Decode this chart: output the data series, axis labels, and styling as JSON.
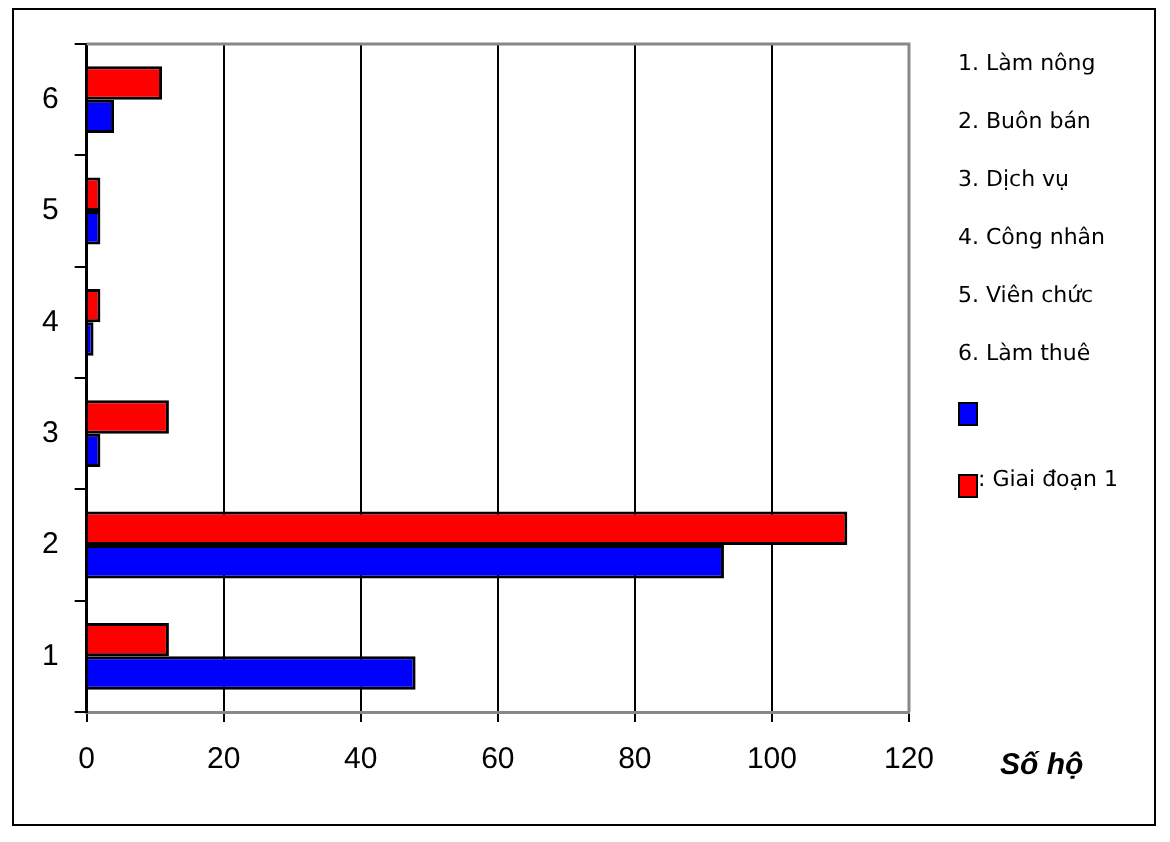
{
  "chart_data": {
    "type": "bar",
    "orientation": "horizontal",
    "categories": [
      "6",
      "5",
      "4",
      "3",
      "2",
      "1"
    ],
    "series": [
      {
        "color": "#0000ff",
        "values": [
          4,
          2,
          1,
          2,
          93,
          48
        ]
      },
      {
        "name": ": Giai đoạn 1",
        "color": "#ff0000",
        "values": [
          11,
          2,
          2,
          12,
          111,
          12
        ]
      }
    ],
    "xlim": [
      0,
      120
    ],
    "xticks": [
      0,
      20,
      40,
      60,
      80,
      100,
      120
    ],
    "xlabel": "Số hộ",
    "grid": "x",
    "legend": "right",
    "annotations": [
      "1. Làm nông",
      "2. Buôn bán",
      "3. Dịch vụ",
      "4. Công nhân",
      "5. Viên chức",
      "6. Làm thuê"
    ]
  }
}
